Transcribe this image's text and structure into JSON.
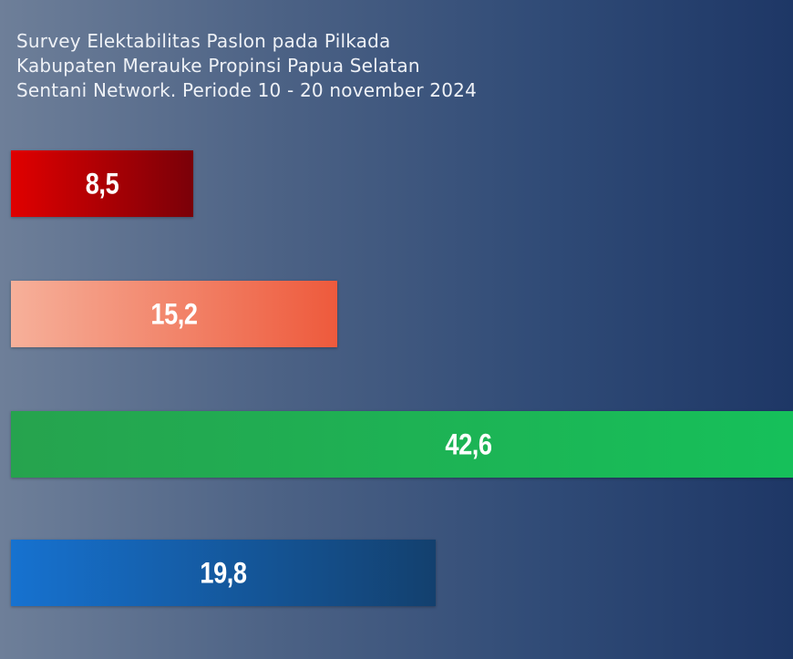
{
  "chart_data": {
    "type": "bar",
    "orientation": "horizontal",
    "title_lines": [
      "Survey Elektabilitas Paslon pada Pilkada",
      "Kabupaten Merauke Propinsi Papua Selatan",
      "Sentani Network. Periode 10 - 20 november 2024"
    ],
    "value_labels": [
      "8,5",
      "15,2",
      "42,6",
      "19,8"
    ],
    "values": [
      8.5,
      15.2,
      42.6,
      19.8
    ],
    "colors": [
      [
        "#e00000",
        "#7a0008"
      ],
      [
        "#f6b09a",
        "#ee5a3c"
      ],
      [
        "#26a34e",
        "#16c05a"
      ],
      [
        "#1672d0",
        "#13406e"
      ]
    ],
    "xlim": [
      0,
      42.6
    ],
    "grid": false,
    "legend": "none"
  }
}
